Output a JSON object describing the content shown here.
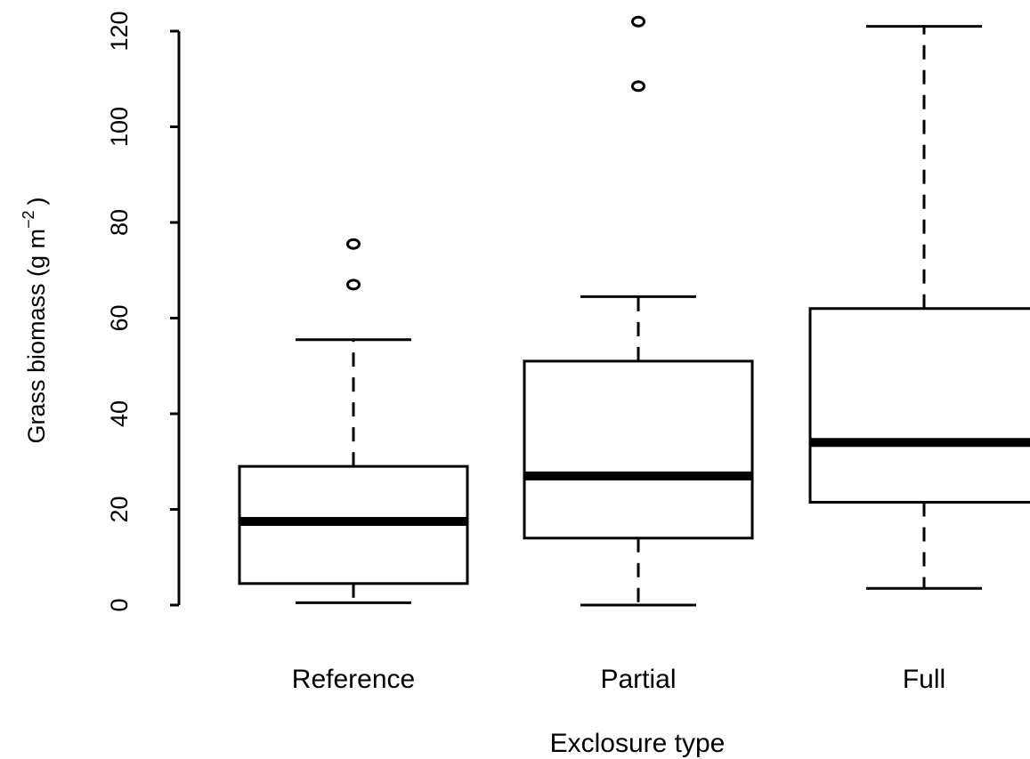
{
  "chart_data": {
    "type": "boxplot",
    "xlabel": "Exclosure type",
    "ylabel": {
      "main": "Grass biomass (g m",
      "superscript": "−2",
      "closing": ")"
    },
    "ylim": [
      0,
      120
    ],
    "yticks": [
      "0",
      "20",
      "40",
      "60",
      "80",
      "100",
      "120"
    ],
    "grid": false,
    "categories": [
      "Reference",
      "Partial",
      "Full"
    ],
    "boxes": [
      {
        "name": "Reference",
        "whisker_low": 0.5,
        "q1": 4.5,
        "median": 17.5,
        "q3": 29,
        "whisker_high": 55.5,
        "outliers": [
          67,
          75.5
        ]
      },
      {
        "name": "Partial",
        "whisker_low": 0,
        "q1": 14,
        "median": 27,
        "q3": 51,
        "whisker_high": 64.5,
        "outliers": [
          108.5,
          122
        ]
      },
      {
        "name": "Full",
        "whisker_low": 3.5,
        "q1": 21.5,
        "median": 34,
        "q3": 62,
        "whisker_high": 121,
        "outliers": []
      }
    ],
    "colors": {
      "stroke": "#000000",
      "fill": "#ffffff"
    }
  }
}
